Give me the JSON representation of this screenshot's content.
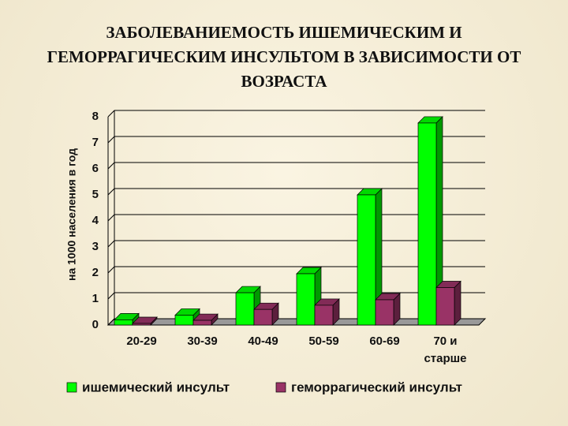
{
  "chart_data": {
    "type": "bar3d",
    "title": "ЗАБОЛЕВАНИЕМОСТЬ ИШЕМИЧЕСКИМ И ГЕМОРРАГИЧЕСКИМ ИНСУЛЬТОМ В ЗАВИСИМОСТИ ОТ ВОЗРАСТА",
    "y_label": "на 1000 населения в год",
    "categories": [
      "20-29",
      "30-39",
      "40-49",
      "50-59",
      "60-69",
      "70 и старше"
    ],
    "series": [
      {
        "name": "ишемический инсульт",
        "color": "#00ff00",
        "values": [
          0.2,
          0.38,
          1.24,
          1.97,
          5.0,
          7.76
        ]
      },
      {
        "name": "геморрагический инсульт",
        "color": "#993366",
        "values": [
          0.06,
          0.18,
          0.6,
          0.76,
          0.97,
          1.44
        ]
      }
    ],
    "ylim": [
      0,
      8
    ],
    "yticks": [
      0,
      1,
      2,
      3,
      4,
      5,
      6,
      7,
      8
    ],
    "grid": true,
    "legend": "bottom"
  }
}
